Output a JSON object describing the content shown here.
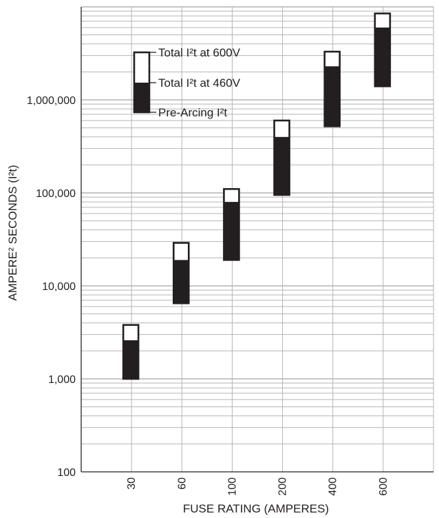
{
  "chart_data": {
    "type": "bar",
    "xlabel": "FUSE RATING (AMPERES)",
    "ylabel": "AMPERE² SECONDS (I²t)",
    "yscale": "log",
    "ylim": [
      100,
      10000000
    ],
    "grid": true,
    "categories": [
      "30",
      "60",
      "100",
      "200",
      "400",
      "600"
    ],
    "y_ticks": [
      {
        "value": 100,
        "label": "100"
      },
      {
        "value": 1000,
        "label": "1,000"
      },
      {
        "value": 10000,
        "label": "10,000"
      },
      {
        "value": 100000,
        "label": "100,000"
      },
      {
        "value": 1000000,
        "label": "1,000,000"
      }
    ],
    "series": [
      {
        "name": "Pre-Arcing I²t",
        "values": [
          1000,
          6500,
          19000,
          95000,
          520000,
          1400000
        ],
        "color": "#231f20"
      },
      {
        "name": "Total I²t at 460V",
        "values": [
          2600,
          19000,
          80000,
          400000,
          2300000,
          6000000
        ],
        "color": "#231f20"
      },
      {
        "name": "Total I²t at 600V",
        "values": [
          3800,
          29000,
          110000,
          600000,
          3300000,
          8500000
        ],
        "color": "#ffffff"
      }
    ],
    "legend": {
      "position": "top-left",
      "entries": [
        "Total I²t at 600V",
        "Total I²t at 460V",
        "Pre-Arcing I²t"
      ]
    }
  }
}
